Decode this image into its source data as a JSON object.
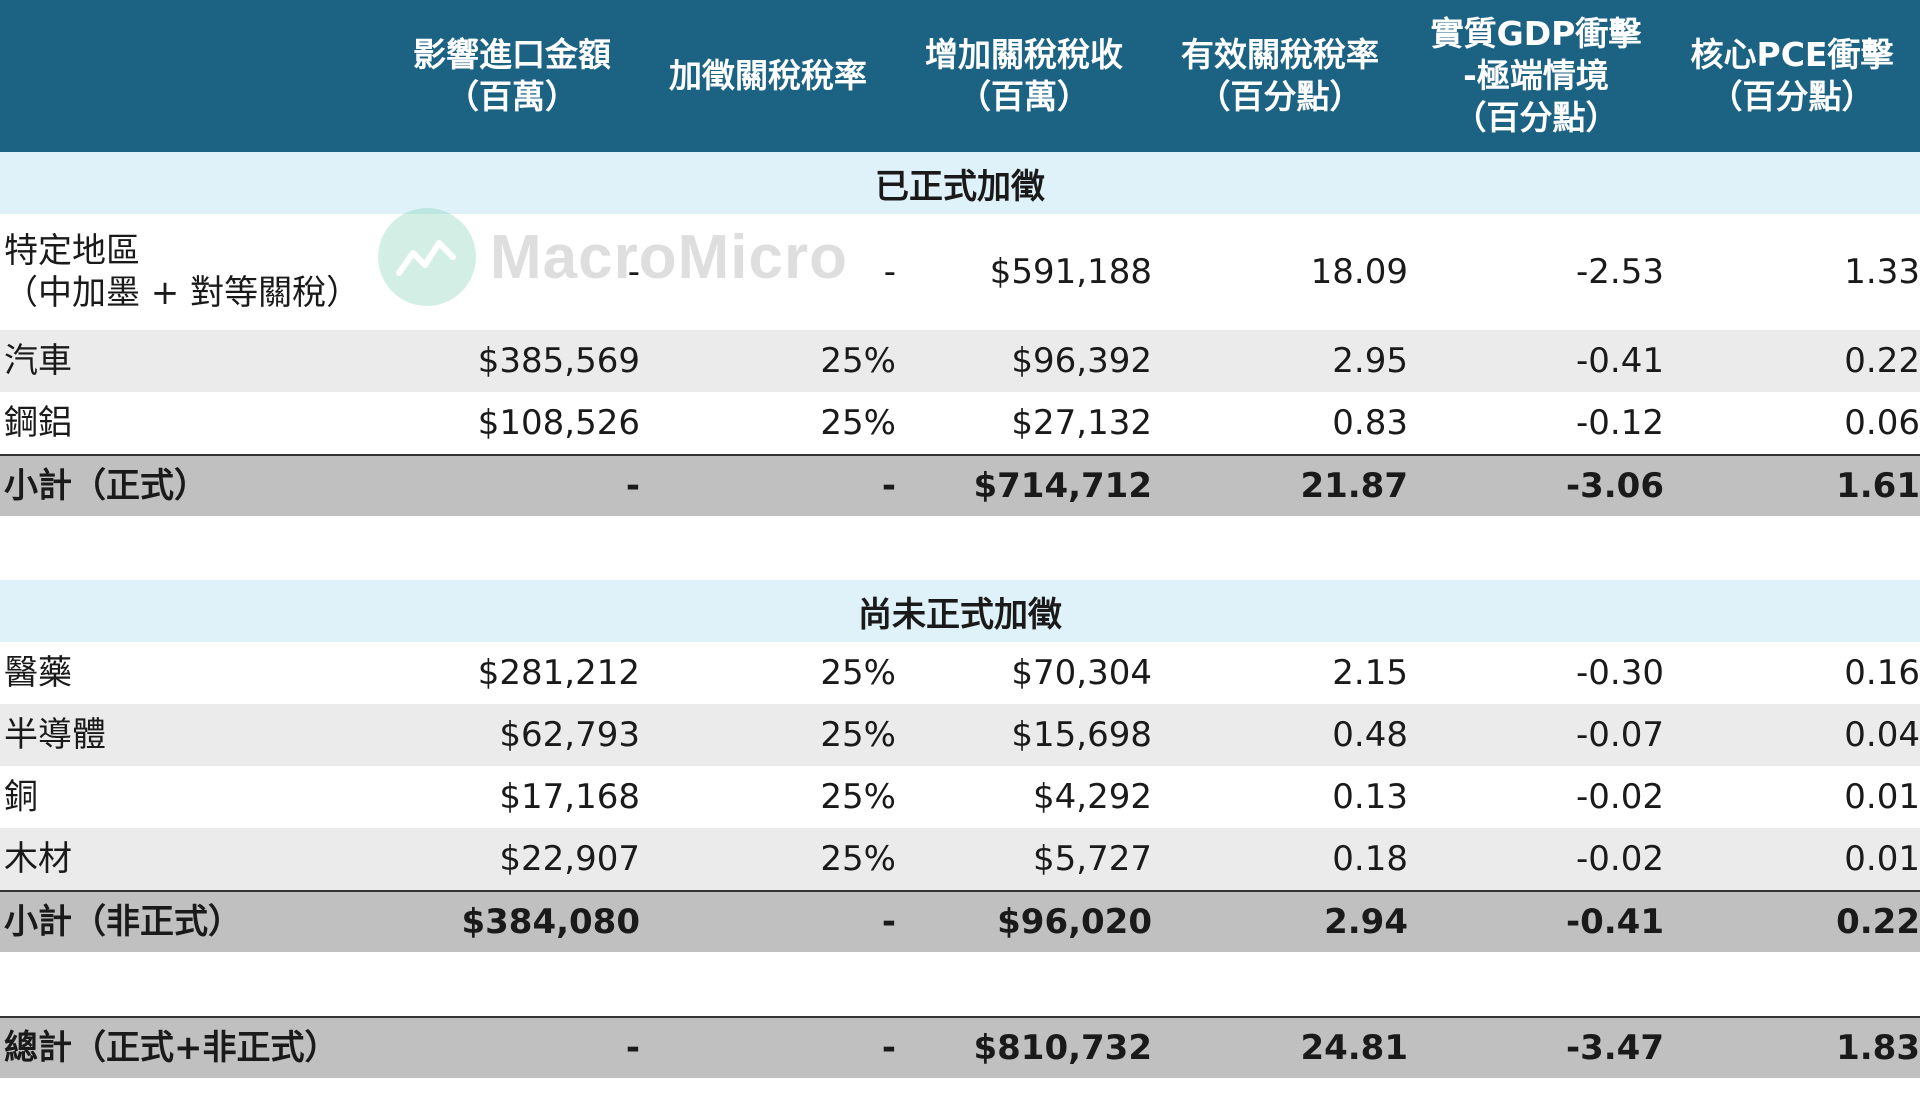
{
  "header": {
    "col0": "",
    "col1": "影響進口金額\n（百萬）",
    "col2": "加徵關稅稅率",
    "col3": "增加關稅稅收\n（百萬）",
    "col4": "有效關稅稅率\n（百分點）",
    "col5": "實質GDP衝擊\n-極端情境\n（百分點）",
    "col6": "核心PCE衝擊\n（百分點）"
  },
  "section1": {
    "title": "已正式加徵",
    "rows": [
      {
        "label": "特定地區\n（中加墨 + 對等關稅）",
        "v1": "-",
        "v2": "-",
        "v3": "$591,188",
        "v4": "18.09",
        "v5": "-2.53",
        "v6": "1.33"
      },
      {
        "label": "汽車",
        "v1": "$385,569",
        "v2": "25%",
        "v3": "$96,392",
        "v4": "2.95",
        "v5": "-0.41",
        "v6": "0.22"
      },
      {
        "label": "鋼鋁",
        "v1": "$108,526",
        "v2": "25%",
        "v3": "$27,132",
        "v4": "0.83",
        "v5": "-0.12",
        "v6": "0.06"
      }
    ],
    "subtotal": {
      "label": "小計（正式）",
      "v1": "-",
      "v2": "-",
      "v3": "$714,712",
      "v4": "21.87",
      "v5": "-3.06",
      "v6": "1.61"
    }
  },
  "section2": {
    "title": "尚未正式加徵",
    "rows": [
      {
        "label": "醫藥",
        "v1": "$281,212",
        "v2": "25%",
        "v3": "$70,304",
        "v4": "2.15",
        "v5": "-0.30",
        "v6": "0.16"
      },
      {
        "label": "半導體",
        "v1": "$62,793",
        "v2": "25%",
        "v3": "$15,698",
        "v4": "0.48",
        "v5": "-0.07",
        "v6": "0.04"
      },
      {
        "label": "銅",
        "v1": "$17,168",
        "v2": "25%",
        "v3": "$4,292",
        "v4": "0.13",
        "v5": "-0.02",
        "v6": "0.01"
      },
      {
        "label": "木材",
        "v1": "$22,907",
        "v2": "25%",
        "v3": "$5,727",
        "v4": "0.18",
        "v5": "-0.02",
        "v6": "0.01"
      }
    ],
    "subtotal": {
      "label": "小計（非正式）",
      "v1": "$384,080",
      "v2": "-",
      "v3": "$96,020",
      "v4": "2.94",
      "v5": "-0.41",
      "v6": "0.22"
    }
  },
  "total": {
    "label": "總計（正式+非正式）",
    "v1": "-",
    "v2": "-",
    "v3": "$810,732",
    "v4": "24.81",
    "v5": "-3.47",
    "v6": "1.83"
  },
  "watermark": {
    "text": "MacroMicro",
    "logo_color": "#66c9a6"
  },
  "colors": {
    "header_bg": "#1c6283",
    "section_bg": "#e0f2f9",
    "subtotal_bg": "#c0c0c0",
    "stripe_bg": "#ebebeb"
  }
}
